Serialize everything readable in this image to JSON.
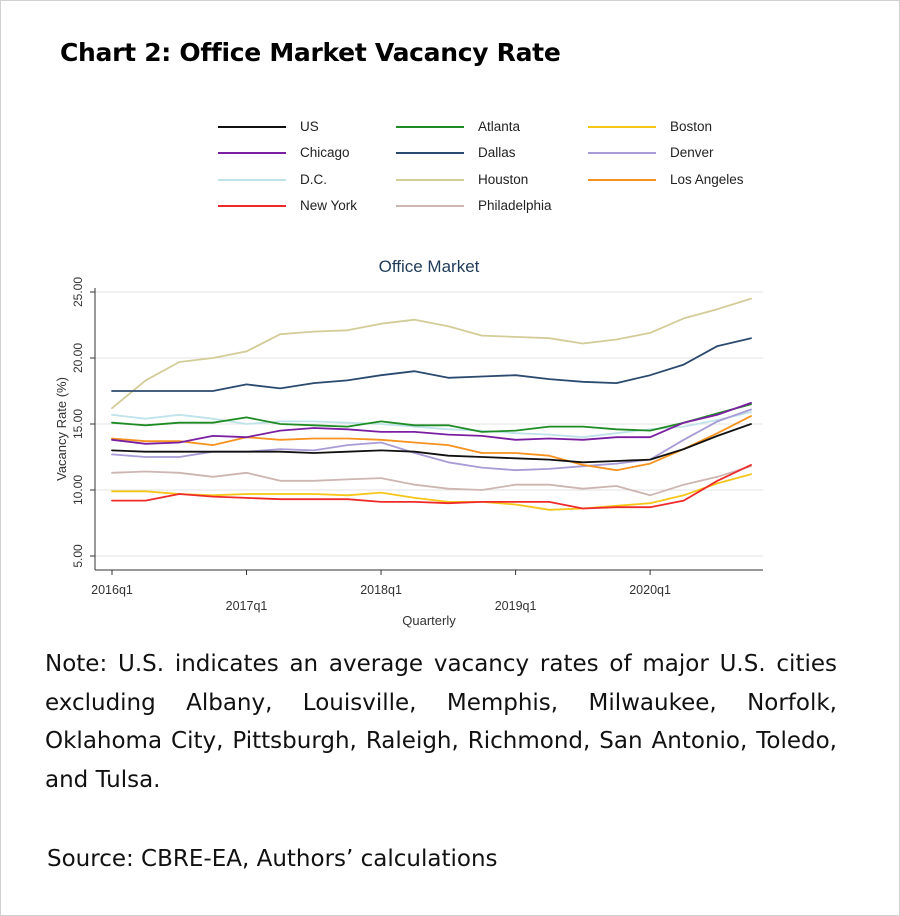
{
  "title": "Chart 2: Office Market Vacancy Rate",
  "note": "Note: U.S. indicates an average vacancy rates of major U.S. cities excluding Albany, Louisville, Memphis, Milwaukee, Norfolk, Oklahoma City, Pittsburgh, Raleigh, Richmond, San Antonio, Toledo, and Tulsa.",
  "source": "Source: CBRE-EA, Authors’ calculations",
  "chart_data": {
    "type": "line",
    "title": "Office Market",
    "xlabel": "Quarterly",
    "ylabel": "Vacancy Rate (%)",
    "ylim": [
      5,
      25
    ],
    "yticks": [
      "5.00",
      "10.00",
      "15.00",
      "20.00",
      "25.00"
    ],
    "x": [
      "2016q1",
      "2016q2",
      "2016q3",
      "2016q4",
      "2017q1",
      "2017q2",
      "2017q3",
      "2017q4",
      "2018q1",
      "2018q2",
      "2018q3",
      "2018q4",
      "2019q1",
      "2019q2",
      "2019q3",
      "2019q4",
      "2020q1",
      "2020q2",
      "2020q3",
      "2020q4"
    ],
    "xticks": [
      "2016q1",
      "2017q1",
      "2018q1",
      "2019q1",
      "2020q1"
    ],
    "grid": true,
    "legend_position": "top",
    "series": [
      {
        "name": "US",
        "color": "#111111",
        "values": [
          13.0,
          12.9,
          12.9,
          12.9,
          12.9,
          12.9,
          12.8,
          12.9,
          13.0,
          12.9,
          12.6,
          12.5,
          12.4,
          12.3,
          12.1,
          12.2,
          12.3,
          13.1,
          14.1,
          15.0
        ]
      },
      {
        "name": "Atlanta",
        "color": "#1f8b24",
        "values": [
          15.1,
          14.9,
          15.1,
          15.1,
          15.5,
          15.0,
          14.9,
          14.8,
          15.2,
          14.9,
          14.9,
          14.4,
          14.5,
          14.8,
          14.8,
          14.6,
          14.5,
          15.1,
          15.8,
          16.5
        ]
      },
      {
        "name": "Boston",
        "color": "#f5c518",
        "values": [
          9.9,
          9.9,
          9.7,
          9.6,
          9.7,
          9.7,
          9.7,
          9.6,
          9.8,
          9.4,
          9.1,
          9.1,
          8.9,
          8.5,
          8.6,
          8.8,
          9.0,
          9.6,
          10.5,
          11.2
        ]
      },
      {
        "name": "Chicago",
        "color": "#7b1fa2",
        "values": [
          13.8,
          13.5,
          13.6,
          14.1,
          14.0,
          14.5,
          14.7,
          14.6,
          14.4,
          14.4,
          14.2,
          14.1,
          13.8,
          13.9,
          13.8,
          14.0,
          14.0,
          15.1,
          15.7,
          16.6
        ]
      },
      {
        "name": "Dallas",
        "color": "#2b4a6f",
        "values": [
          17.5,
          17.5,
          17.5,
          17.5,
          18.0,
          17.7,
          18.1,
          18.3,
          18.7,
          19.0,
          18.5,
          18.6,
          18.7,
          18.4,
          18.2,
          18.1,
          18.7,
          19.5,
          20.9,
          21.5
        ]
      },
      {
        "name": "Denver",
        "color": "#a89bd6",
        "values": [
          12.7,
          12.5,
          12.5,
          12.9,
          12.9,
          13.1,
          13.0,
          13.4,
          13.6,
          12.8,
          12.1,
          11.7,
          11.5,
          11.6,
          11.8,
          12.0,
          12.3,
          13.8,
          15.2,
          16.1
        ]
      },
      {
        "name": "D.C.",
        "color": "#bfe3ea",
        "values": [
          15.7,
          15.4,
          15.7,
          15.4,
          15.0,
          15.2,
          15.2,
          15.1,
          15.0,
          14.8,
          14.6,
          14.5,
          14.3,
          14.2,
          14.0,
          14.3,
          14.6,
          14.8,
          15.3,
          15.9
        ]
      },
      {
        "name": "Houston",
        "color": "#d4cc98",
        "values": [
          16.2,
          18.3,
          19.7,
          20.0,
          20.5,
          21.8,
          22.0,
          22.1,
          22.6,
          22.9,
          22.4,
          21.7,
          21.6,
          21.5,
          21.1,
          21.4,
          21.9,
          23.0,
          23.7,
          24.5
        ]
      },
      {
        "name": "Los Angeles",
        "color": "#f7921e",
        "values": [
          13.9,
          13.7,
          13.7,
          13.4,
          14.0,
          13.8,
          13.9,
          13.9,
          13.8,
          13.6,
          13.4,
          12.8,
          12.8,
          12.6,
          11.9,
          11.5,
          12.0,
          13.1,
          14.3,
          15.6
        ]
      },
      {
        "name": "New York",
        "color": "#ee2a2a",
        "values": [
          9.2,
          9.2,
          9.7,
          9.5,
          9.4,
          9.3,
          9.3,
          9.3,
          9.1,
          9.1,
          9.0,
          9.1,
          9.1,
          9.1,
          8.6,
          8.7,
          8.7,
          9.2,
          10.7,
          11.9
        ]
      },
      {
        "name": "Philadelphia",
        "color": "#cdb5b0",
        "values": [
          11.3,
          11.4,
          11.3,
          11.0,
          11.3,
          10.7,
          10.7,
          10.8,
          10.9,
          10.4,
          10.1,
          10.0,
          10.4,
          10.4,
          10.1,
          10.3,
          9.6,
          10.4,
          11.0,
          11.8
        ]
      }
    ]
  }
}
